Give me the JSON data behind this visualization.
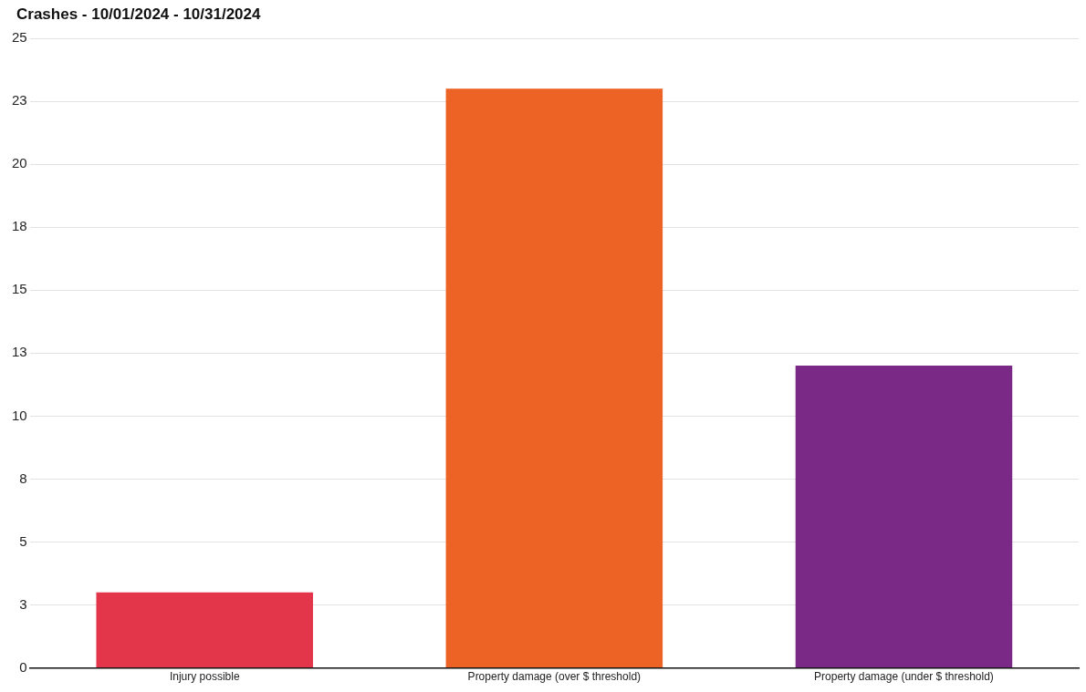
{
  "chart_data": {
    "type": "bar",
    "title": "Crashes - 10/01/2024 - 10/31/2024",
    "categories": [
      "Injury possible",
      "Property damage (over $ threshold)",
      "Property damage (under $ threshold)"
    ],
    "values": [
      3,
      23,
      12
    ],
    "colors": [
      "#e3364a",
      "#ec6325",
      "#7a2a86"
    ],
    "ylim": [
      0,
      25
    ],
    "yticks": [
      0,
      {
        "value": 2.5,
        "label": "3"
      },
      5,
      {
        "value": 7.5,
        "label": "8"
      },
      10,
      {
        "value": 12.5,
        "label": "13"
      },
      15,
      {
        "value": 17.5,
        "label": "18"
      },
      20,
      {
        "value": 22.5,
        "label": "23"
      },
      25
    ],
    "grid": "y",
    "legend": false
  }
}
